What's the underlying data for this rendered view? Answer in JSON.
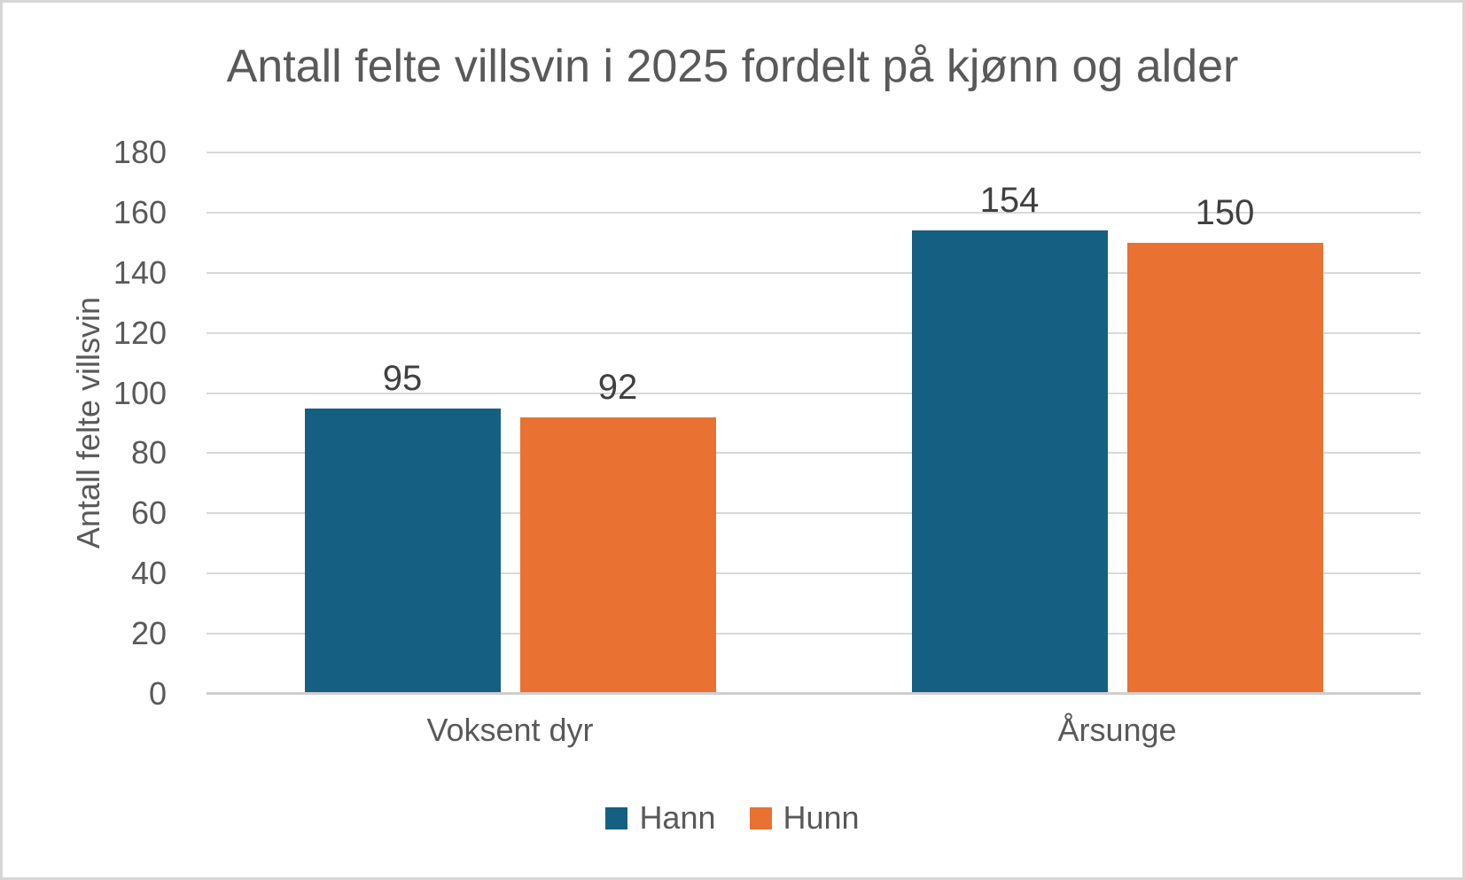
{
  "chart_data": {
    "type": "bar",
    "title": "Antall felte villsvin i 2025 fordelt på kjønn og alder",
    "ylabel": "Antall felte villsvin",
    "xlabel": "",
    "categories": [
      "Voksent dyr",
      "Årsunge"
    ],
    "series": [
      {
        "name": "Hann",
        "color": "#156082",
        "values": [
          95,
          154
        ]
      },
      {
        "name": "Hunn",
        "color": "#E97132",
        "values": [
          92,
          150
        ]
      }
    ],
    "ylim": [
      0,
      180
    ],
    "ytick_step": 20,
    "yticks": [
      0,
      20,
      40,
      60,
      80,
      100,
      120,
      140,
      160,
      180
    ],
    "grid": "horizontal",
    "legend_position": "bottom",
    "data_labels_shown": true
  },
  "colors": {
    "series_hann": "#156082",
    "series_hunn": "#E97132",
    "gridline": "#d9d9d9",
    "axis_line": "#d0cece",
    "text_gray": "#595959",
    "data_label": "#404040",
    "frame_border": "#d6d6d6"
  }
}
